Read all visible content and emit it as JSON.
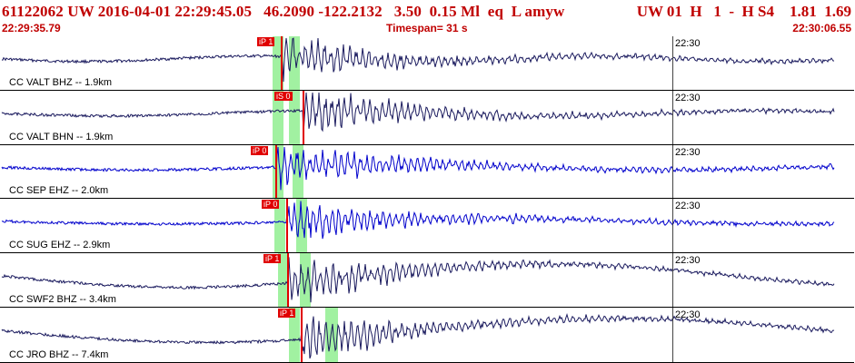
{
  "header": {
    "event_line": "61122062 UW 2016-04-01 22:29:45.05   46.2090 -122.2132   3.50  0.15 Ml  eq  L amyw",
    "summary_right": "UW 01  H   1  -  H S4    1.81  1.69",
    "start_time": "22:29:35.79",
    "timespan": "Timespan=  31 s",
    "end_time": "22:30:06.55"
  },
  "colors": {
    "accent": "#c00000",
    "pick": "#e00000",
    "window": "#90ee90",
    "trace_dark": "#1a1a5e",
    "trace_blue": "#0000cc"
  },
  "panels": [
    {
      "id": "valt-bhz",
      "station": "CC VALT BHZ -- 1.9km",
      "time_tick": "22:30",
      "picks": [
        "iP 1"
      ],
      "trace": "trace_dark"
    },
    {
      "id": "valt-bhn",
      "station": "CC VALT BHN -- 1.9km",
      "time_tick": "22:30",
      "picks": [
        "iS 0"
      ],
      "trace": "trace_dark"
    },
    {
      "id": "sep-ehz",
      "station": "CC SEP EHZ -- 2.0km",
      "time_tick": "22:30",
      "picks": [
        "iP 0"
      ],
      "trace": "trace_blue"
    },
    {
      "id": "sug-ehz",
      "station": "CC SUG EHZ -- 2.9km",
      "time_tick": "22:30",
      "picks": [
        "iP 0"
      ],
      "trace": "trace_blue"
    },
    {
      "id": "swf2-bhz",
      "station": "CC SWF2 BHZ -- 3.4km",
      "time_tick": "22:30",
      "picks": [
        "iP 1"
      ],
      "trace": "trace_dark"
    },
    {
      "id": "jro-bhz",
      "station": "CC JRO BHZ -- 7.4km",
      "time_tick": "22:30",
      "picks": [
        "iP 1"
      ],
      "trace": "trace_dark"
    }
  ]
}
